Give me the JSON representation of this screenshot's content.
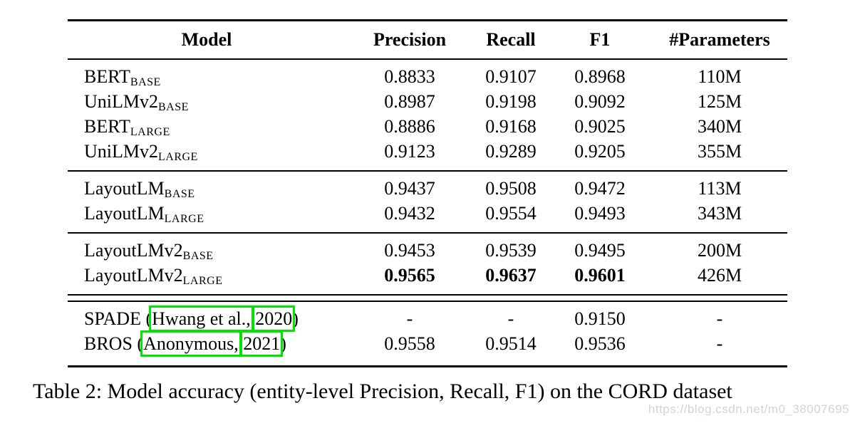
{
  "table": {
    "columns": [
      "Model",
      "Precision",
      "Recall",
      "F1",
      "#Parameters"
    ],
    "rows": [
      {
        "model": {
          "name": "BERT",
          "sub": "BASE"
        },
        "precision": "0.8833",
        "recall": "0.9107",
        "f1": "0.8968",
        "params": "110M"
      },
      {
        "model": {
          "name": "UniLMv2",
          "sub": "BASE"
        },
        "precision": "0.8987",
        "recall": "0.9198",
        "f1": "0.9092",
        "params": "125M"
      },
      {
        "model": {
          "name": "BERT",
          "sub": "LARGE"
        },
        "precision": "0.8886",
        "recall": "0.9168",
        "f1": "0.9025",
        "params": "340M"
      },
      {
        "model": {
          "name": "UniLMv2",
          "sub": "LARGE"
        },
        "precision": "0.9123",
        "recall": "0.9289",
        "f1": "0.9205",
        "params": "355M"
      },
      {
        "model": {
          "name": "LayoutLM",
          "sub": "BASE"
        },
        "precision": "0.9437",
        "recall": "0.9508",
        "f1": "0.9472",
        "params": "113M"
      },
      {
        "model": {
          "name": "LayoutLM",
          "sub": "LARGE"
        },
        "precision": "0.9432",
        "recall": "0.9554",
        "f1": "0.9493",
        "params": "343M"
      },
      {
        "model": {
          "name": "LayoutLMv2",
          "sub": "BASE"
        },
        "precision": "0.9453",
        "recall": "0.9539",
        "f1": "0.9495",
        "params": "200M"
      },
      {
        "model": {
          "name": "LayoutLMv2",
          "sub": "LARGE"
        },
        "precision": "0.9565",
        "recall": "0.9637",
        "f1": "0.9601",
        "params": "426M"
      },
      {
        "model": {
          "pre": "SPADE (",
          "box1": "Hwang et al.,",
          "sep": " ",
          "box2": "2020",
          "post": ")"
        },
        "precision": "-",
        "recall": "-",
        "f1": "0.9150",
        "params": "-"
      },
      {
        "model": {
          "pre": "BROS (",
          "box1": "Anonymous,",
          "sep": " ",
          "box2": "2021",
          "post": ")"
        },
        "precision": "0.9558",
        "recall": "0.9514",
        "f1": "0.9536",
        "params": "-"
      }
    ]
  },
  "caption": "Table 2: Model accuracy (entity-level Precision, Recall, F1) on the CORD dataset",
  "watermark": "https://blog.csdn.net/m0_38007695",
  "colors": {
    "annotation_box": "#00e400",
    "watermark_text": "#d0d5da",
    "rule": "#000000",
    "background": "#ffffff"
  }
}
